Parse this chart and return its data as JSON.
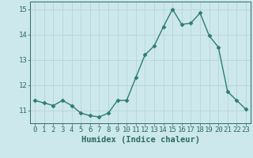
{
  "x": [
    0,
    1,
    2,
    3,
    4,
    5,
    6,
    7,
    8,
    9,
    10,
    11,
    12,
    13,
    14,
    15,
    16,
    17,
    18,
    19,
    20,
    21,
    22,
    23
  ],
  "y": [
    11.4,
    11.3,
    11.2,
    11.4,
    11.2,
    10.9,
    10.8,
    10.75,
    10.9,
    11.4,
    11.4,
    12.3,
    13.2,
    13.55,
    14.3,
    15.0,
    14.4,
    14.45,
    14.85,
    13.95,
    13.5,
    11.75,
    11.4,
    11.05
  ],
  "line_color": "#2e7d6e",
  "marker": "D",
  "marker_size": 2.5,
  "bg_color": "#cce8ec",
  "grid_color": "#b8d4d8",
  "xlabel": "Humidex (Indice chaleur)",
  "ylim": [
    10.5,
    15.3
  ],
  "xlim": [
    -0.5,
    23.5
  ],
  "yticks": [
    11,
    12,
    13,
    14,
    15
  ],
  "xticks": [
    0,
    1,
    2,
    3,
    4,
    5,
    6,
    7,
    8,
    9,
    10,
    11,
    12,
    13,
    14,
    15,
    16,
    17,
    18,
    19,
    20,
    21,
    22,
    23
  ],
  "tick_color": "#2e6b5e",
  "label_color": "#2e6b5e",
  "xlabel_fontsize": 7.5,
  "tick_fontsize": 6.5,
  "linewidth": 1.0
}
